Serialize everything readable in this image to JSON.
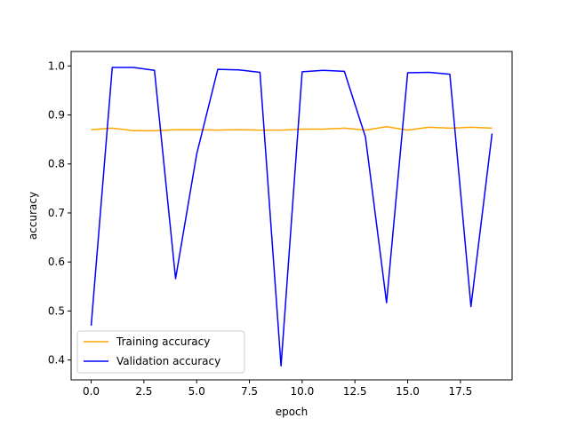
{
  "chart_data": {
    "type": "line",
    "xlabel": "epoch",
    "ylabel": "accuracy",
    "xlim": [
      -0.95,
      19.95
    ],
    "ylim": [
      0.3595,
      1.0295
    ],
    "x_ticks": [
      0,
      2.5,
      5,
      7.5,
      10,
      12.5,
      15,
      17.5
    ],
    "x_tick_labels": [
      "0.0",
      "2.5",
      "5.0",
      "7.5",
      "10.0",
      "12.5",
      "15.0",
      "17.5"
    ],
    "y_ticks": [
      0.4,
      0.5,
      0.6,
      0.7,
      0.8,
      0.9,
      1.0
    ],
    "y_tick_labels": [
      "0.4",
      "0.5",
      "0.6",
      "0.7",
      "0.8",
      "0.9",
      "1.0"
    ],
    "grid": false,
    "legend_position": "lower-left",
    "x": [
      0,
      1,
      2,
      3,
      4,
      5,
      6,
      7,
      8,
      9,
      10,
      11,
      12,
      13,
      14,
      15,
      16,
      17,
      18,
      19
    ],
    "series": [
      {
        "name": "Training accuracy",
        "color": "#ffa500",
        "values": [
          0.87,
          0.873,
          0.868,
          0.868,
          0.87,
          0.87,
          0.869,
          0.87,
          0.869,
          0.869,
          0.871,
          0.871,
          0.873,
          0.869,
          0.876,
          0.869,
          0.875,
          0.873,
          0.875,
          0.873
        ]
      },
      {
        "name": "Validation accuracy",
        "color": "#0000ff",
        "values": [
          0.47,
          0.997,
          0.997,
          0.991,
          0.566,
          0.82,
          0.993,
          0.992,
          0.987,
          0.388,
          0.988,
          0.991,
          0.989,
          0.855,
          0.517,
          0.986,
          0.987,
          0.983,
          0.509,
          0.862
        ]
      }
    ]
  }
}
